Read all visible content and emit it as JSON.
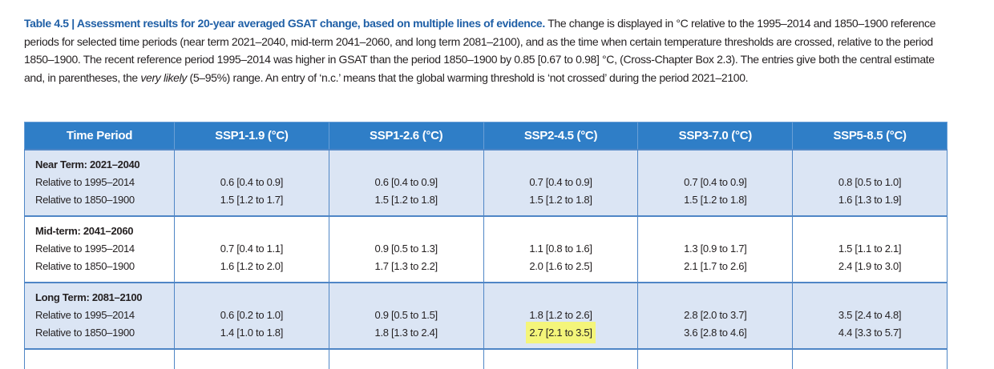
{
  "caption": {
    "title": "Table 4.5 | Assessment results for 20-year averaged GSAT change, based on multiple lines of evidence.",
    "text_before": "The change is displayed in °C relative to the 1995–2014 and 1850–1900 reference periods for selected time periods (near term 2021–2040, mid-term 2041–2060, and long term 2081–2100), and as the time when certain temperature thresholds are crossed, relative to the period 1850–1900. The recent reference period 1995–2014 was higher in GSAT than the period 1850–1900 by 0.85 [0.67 to 0.98] °C, (Cross-Chapter Box 2.3). The entries give both the central estimate and, in parentheses, the",
    "emphasis": "very likely",
    "text_after": "(5–95%) range. An entry of ‘n.c.’ means that the global warming threshold is ‘not crossed’ during the period 2021–2100."
  },
  "table": {
    "header": [
      "Time Period",
      "SSP1-1.9 (°C)",
      "SSP1-2.6 (°C)",
      "SSP2-4.5 (°C)",
      "SSP3-7.0 (°C)",
      "SSP5-8.5 (°C)"
    ],
    "groups": [
      {
        "name": "Near Term: 2021–2040",
        "rows": [
          {
            "label": "Relative to 1995–2014",
            "values": [
              "0.6 [0.4 to 0.9]",
              "0.6 [0.4 to 0.9]",
              "0.7 [0.4 to 0.9]",
              "0.7 [0.4 to 0.9]",
              "0.8 [0.5 to 1.0]"
            ]
          },
          {
            "label": "Relative to 1850–1900",
            "values": [
              "1.5 [1.2 to 1.7]",
              "1.5 [1.2 to 1.8]",
              "1.5 [1.2 to 1.8]",
              "1.5 [1.2 to 1.8]",
              "1.6 [1.3 to 1.9]"
            ]
          }
        ]
      },
      {
        "name": "Mid-term: 2041–2060",
        "rows": [
          {
            "label": "Relative to 1995–2014",
            "values": [
              "0.7 [0.4 to 1.1]",
              "0.9 [0.5 to 1.3]",
              "1.1 [0.8 to 1.6]",
              "1.3 [0.9 to 1.7]",
              "1.5 [1.1 to 2.1]"
            ]
          },
          {
            "label": "Relative to 1850–1900",
            "values": [
              "1.6 [1.2 to 2.0]",
              "1.7 [1.3 to 2.2]",
              "2.0 [1.6 to 2.5]",
              "2.1 [1.7 to 2.6]",
              "2.4 [1.9 to 3.0]"
            ]
          }
        ]
      },
      {
        "name": "Long Term: 2081–2100",
        "rows": [
          {
            "label": "Relative to 1995–2014",
            "values": [
              "0.6 [0.2 to 1.0]",
              "0.9 [0.5 to 1.5]",
              "1.8 [1.2 to 2.6]",
              "2.8 [2.0 to 3.7]",
              "3.5 [2.4 to 4.8]"
            ]
          },
          {
            "label": "Relative to 1850–1900",
            "values": [
              "1.4 [1.0 to 1.8]",
              "1.8 [1.3 to 2.4]",
              "2.7 [2.1 to 3.5]",
              "3.6 [2.8 to 4.6]",
              "4.4 [3.3 to 5.7]"
            ]
          }
        ]
      }
    ]
  }
}
